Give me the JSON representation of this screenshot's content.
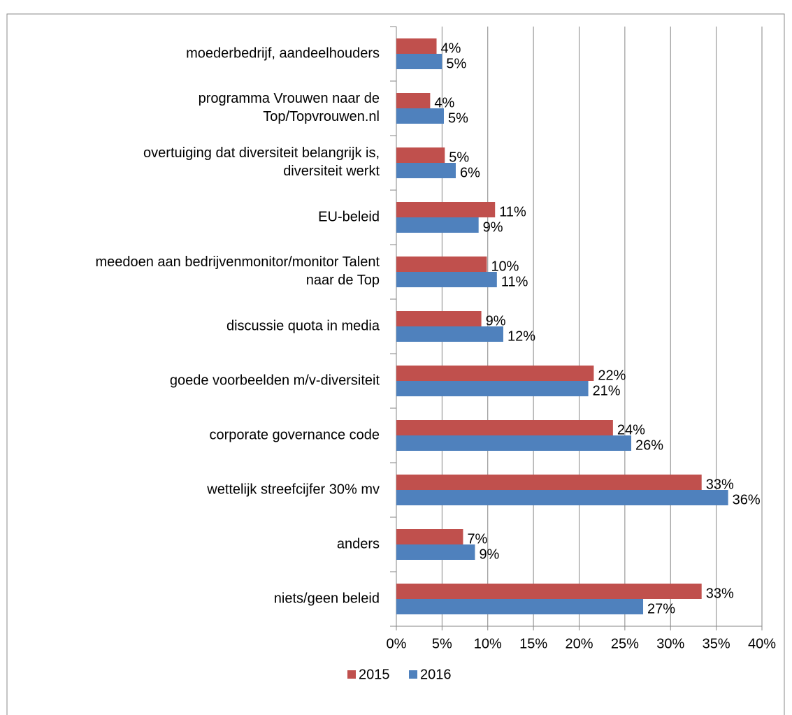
{
  "chart_data": {
    "type": "bar",
    "orientation": "horizontal",
    "categories": [
      "moederbedrijf, aandeelhouders",
      "programma Vrouwen naar de\nTop/Topvrouwen.nl",
      "overtuiging dat diversiteit belangrijk is,\ndiversiteit werkt",
      "EU-beleid",
      "meedoen aan bedrijvenmonitor/monitor Talent\nnaar de Top",
      "discussie quota in media",
      "goede voorbeelden m/v-diversiteit",
      "corporate governance code",
      "wettelijk streefcijfer 30% mv",
      "anders",
      "niets/geen beleid"
    ],
    "series": [
      {
        "name": "2015",
        "color": "#c0504d",
        "values": [
          4.4,
          3.7,
          5.3,
          10.8,
          9.9,
          9.3,
          21.6,
          23.7,
          33.4,
          7.3,
          33.4
        ],
        "value_labels": [
          "4%",
          "4%",
          "5%",
          "11%",
          "10%",
          "9%",
          "22%",
          "24%",
          "33%",
          "7%",
          "33%"
        ]
      },
      {
        "name": "2016",
        "color": "#4f81bd",
        "values": [
          5.0,
          5.2,
          6.5,
          9.0,
          11.0,
          11.7,
          21.0,
          25.7,
          36.3,
          8.6,
          27.0
        ],
        "value_labels": [
          "5%",
          "5%",
          "6%",
          "9%",
          "11%",
          "12%",
          "21%",
          "26%",
          "36%",
          "9%",
          "27%"
        ]
      }
    ],
    "xlim": [
      0,
      40
    ],
    "xticks": [
      {
        "value": 0,
        "label": "0%"
      },
      {
        "value": 5,
        "label": "5%"
      },
      {
        "value": 10,
        "label": "10%"
      },
      {
        "value": 15,
        "label": "15%"
      },
      {
        "value": 20,
        "label": "20%"
      },
      {
        "value": 25,
        "label": "25%"
      },
      {
        "value": 30,
        "label": "30%"
      },
      {
        "value": 35,
        "label": "35%"
      },
      {
        "value": 40,
        "label": "40%"
      }
    ],
    "grid": true,
    "legend": "bottom"
  }
}
